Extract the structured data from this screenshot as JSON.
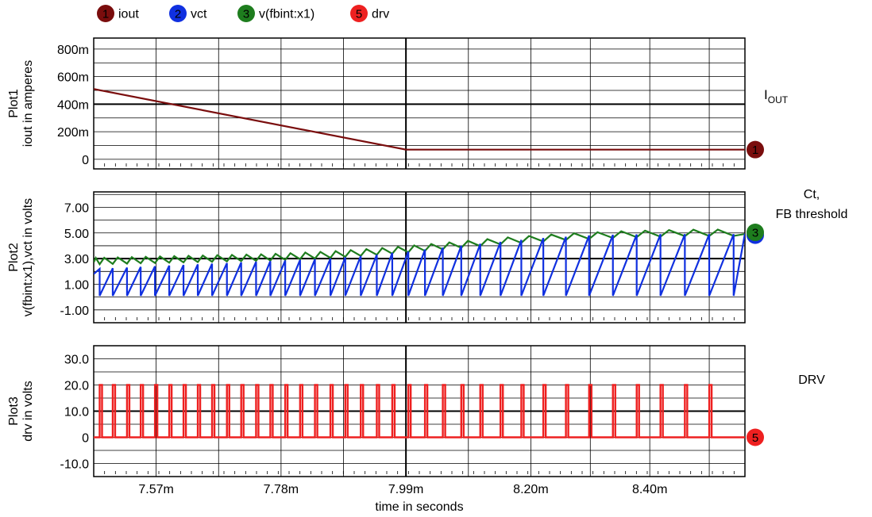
{
  "chart_data": [
    {
      "type": "line",
      "plot_label": "Plot1",
      "ylabel": "iout in amperes",
      "annotation": "I",
      "annotation_sub": "OUT",
      "ylim": [
        -70,
        880
      ],
      "yticks": [
        0,
        200,
        400,
        600,
        800
      ],
      "ytick_labels": [
        "0",
        "200m",
        "400m",
        "600m",
        "800m"
      ],
      "series": [
        {
          "name": "iout",
          "marker": "1",
          "color": "#7a0d0d",
          "x": [
            7.465,
            7.99,
            8.56
          ],
          "y": [
            510,
            70,
            70
          ]
        }
      ]
    },
    {
      "type": "line",
      "plot_label": "Plot2",
      "ylabel": "v(fbint:x1),vct in volts",
      "annotation": "Ct,\nFB threshold",
      "ylim": [
        -2.0,
        8.2
      ],
      "yticks": [
        -1,
        1,
        3,
        5,
        7
      ],
      "ytick_labels": [
        "-1.00",
        "1.00",
        "3.00",
        "5.00",
        "7.00"
      ],
      "vct_low": 0.1,
      "series": [
        {
          "name": "v(fbint:x1)",
          "marker": "3",
          "color": "#1e7d1e",
          "x": [
            7.465,
            7.56,
            7.66,
            7.76,
            7.86,
            7.96,
            8.06,
            8.16,
            8.26,
            8.36,
            8.46,
            8.56
          ],
          "y": [
            2.7,
            2.8,
            2.9,
            3.0,
            3.2,
            3.5,
            3.9,
            4.3,
            4.6,
            4.8,
            4.9,
            4.92
          ]
        },
        {
          "name": "vct",
          "marker": "2",
          "color": "#1030e0",
          "x": [
            7.465,
            7.475,
            7.497,
            7.521,
            7.544,
            7.568,
            7.592,
            7.616,
            7.64,
            7.664,
            7.689,
            7.713,
            7.738,
            7.762,
            7.787,
            7.812,
            7.837,
            7.863,
            7.888,
            7.914,
            7.941,
            7.967,
            7.994,
            8.022,
            8.052,
            8.083,
            8.115,
            8.149,
            8.184,
            8.221,
            8.259,
            8.298,
            8.338,
            8.378,
            8.418,
            8.459,
            8.5,
            8.541
          ],
          "y": [
            1.8,
            2.2,
            2.25,
            2.3,
            2.35,
            2.4,
            2.45,
            2.5,
            2.55,
            2.6,
            2.65,
            2.7,
            2.75,
            2.8,
            2.85,
            2.9,
            2.95,
            3.0,
            3.1,
            3.2,
            3.3,
            3.45,
            3.55,
            3.7,
            3.85,
            4.0,
            4.15,
            4.3,
            4.45,
            4.6,
            4.7,
            4.8,
            4.85,
            4.88,
            4.9,
            4.9,
            4.9,
            4.9
          ]
        }
      ]
    },
    {
      "type": "line",
      "plot_label": "Plot3",
      "ylabel": "drv in volts",
      "annotation": "DRV",
      "ylim": [
        -15,
        35
      ],
      "yticks": [
        -10,
        0,
        10,
        20,
        30
      ],
      "ytick_labels": [
        "-10.0",
        "0",
        "10.0",
        "20.0",
        "30.0"
      ],
      "series": [
        {
          "name": "drv",
          "marker": "5",
          "color": "#ee2020",
          "pulse_high": 20,
          "pulse_low": 0,
          "pulse_times": [
            7.475,
            7.497,
            7.521,
            7.544,
            7.568,
            7.592,
            7.616,
            7.64,
            7.664,
            7.689,
            7.713,
            7.738,
            7.762,
            7.787,
            7.812,
            7.837,
            7.863,
            7.888,
            7.914,
            7.941,
            7.967,
            7.994,
            8.022,
            8.052,
            8.083,
            8.115,
            8.149,
            8.184,
            8.221,
            8.259,
            8.298,
            8.338,
            8.378,
            8.418,
            8.459,
            8.5
          ]
        }
      ]
    }
  ],
  "x_axis": {
    "label": "time in seconds",
    "xlim": [
      7.465,
      8.56
    ],
    "ticks": [
      7.57,
      7.78,
      7.99,
      8.2,
      8.4
    ],
    "tick_labels": [
      "7.57m",
      "7.78m",
      "7.99m",
      "8.20m",
      "8.40m"
    ],
    "grid_lines": [
      7.465,
      7.57,
      7.675,
      7.78,
      7.885,
      7.99,
      8.095,
      8.2,
      8.3,
      8.4,
      8.5,
      8.56
    ]
  },
  "legend": [
    {
      "marker": "1",
      "label": "iout",
      "color": "#7a0d0d"
    },
    {
      "marker": "2",
      "label": "vct",
      "color": "#1030e0"
    },
    {
      "marker": "3",
      "label": "v(fbint:x1)",
      "color": "#1e7d1e"
    },
    {
      "marker": "5",
      "label": "drv",
      "color": "#ee2020"
    }
  ]
}
